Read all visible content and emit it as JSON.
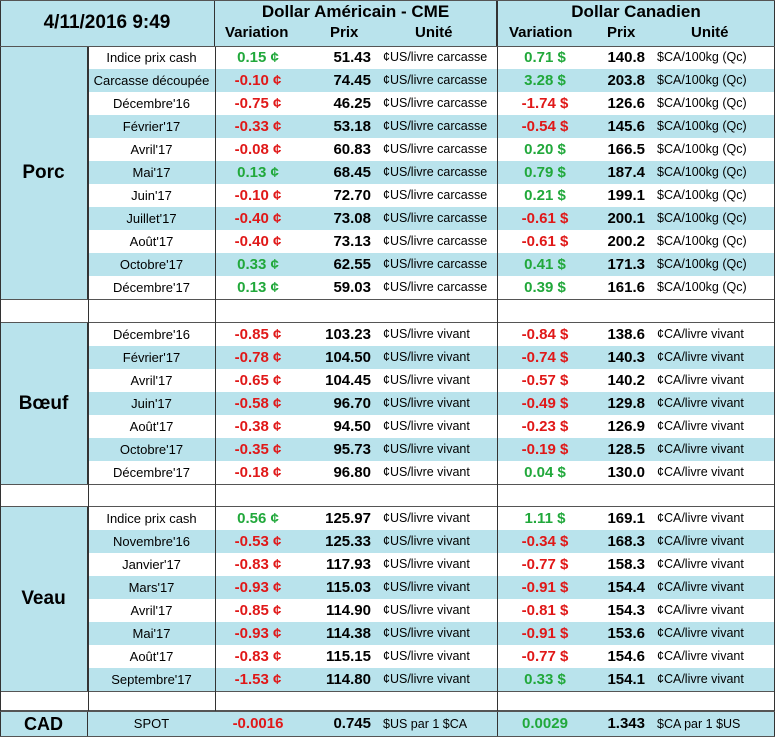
{
  "header": {
    "datetime": "4/11/2016 9:49",
    "usd_title": "Dollar Américain - CME",
    "cad_title": "Dollar Canadien",
    "col_variation": "Variation",
    "col_prix": "Prix",
    "col_unite": "Unité"
  },
  "groups": [
    {
      "label": "Porc",
      "rows": [
        {
          "month": "Indice prix cash",
          "usd_var": "0.15 ¢",
          "usd_price": "51.43",
          "usd_unit": "¢US/livre carcasse",
          "cad_var": "0.71 $",
          "cad_price": "140.8",
          "cad_unit": "$CA/100kg (Qc)",
          "usd_dir": "pos",
          "cad_dir": "pos"
        },
        {
          "month": "Carcasse découpée",
          "usd_var": "-0.10 ¢",
          "usd_price": "74.45",
          "usd_unit": "¢US/livre carcasse",
          "cad_var": "3.28 $",
          "cad_price": "203.8",
          "cad_unit": "$CA/100kg (Qc)",
          "usd_dir": "neg",
          "cad_dir": "pos"
        },
        {
          "month": "Décembre'16",
          "usd_var": "-0.75 ¢",
          "usd_price": "46.25",
          "usd_unit": "¢US/livre carcasse",
          "cad_var": "-1.74 $",
          "cad_price": "126.6",
          "cad_unit": "$CA/100kg (Qc)",
          "usd_dir": "neg",
          "cad_dir": "neg"
        },
        {
          "month": "Février'17",
          "usd_var": "-0.33 ¢",
          "usd_price": "53.18",
          "usd_unit": "¢US/livre carcasse",
          "cad_var": "-0.54 $",
          "cad_price": "145.6",
          "cad_unit": "$CA/100kg (Qc)",
          "usd_dir": "neg",
          "cad_dir": "neg"
        },
        {
          "month": "Avril'17",
          "usd_var": "-0.08 ¢",
          "usd_price": "60.83",
          "usd_unit": "¢US/livre carcasse",
          "cad_var": "0.20 $",
          "cad_price": "166.5",
          "cad_unit": "$CA/100kg (Qc)",
          "usd_dir": "neg",
          "cad_dir": "pos"
        },
        {
          "month": "Mai'17",
          "usd_var": "0.13 ¢",
          "usd_price": "68.45",
          "usd_unit": "¢US/livre carcasse",
          "cad_var": "0.79 $",
          "cad_price": "187.4",
          "cad_unit": "$CA/100kg (Qc)",
          "usd_dir": "pos",
          "cad_dir": "pos"
        },
        {
          "month": "Juin'17",
          "usd_var": "-0.10 ¢",
          "usd_price": "72.70",
          "usd_unit": "¢US/livre carcasse",
          "cad_var": "0.21 $",
          "cad_price": "199.1",
          "cad_unit": "$CA/100kg (Qc)",
          "usd_dir": "neg",
          "cad_dir": "pos"
        },
        {
          "month": "Juillet'17",
          "usd_var": "-0.40 ¢",
          "usd_price": "73.08",
          "usd_unit": "¢US/livre carcasse",
          "cad_var": "-0.61 $",
          "cad_price": "200.1",
          "cad_unit": "$CA/100kg (Qc)",
          "usd_dir": "neg",
          "cad_dir": "neg"
        },
        {
          "month": "Août'17",
          "usd_var": "-0.40 ¢",
          "usd_price": "73.13",
          "usd_unit": "¢US/livre carcasse",
          "cad_var": "-0.61 $",
          "cad_price": "200.2",
          "cad_unit": "$CA/100kg (Qc)",
          "usd_dir": "neg",
          "cad_dir": "neg"
        },
        {
          "month": "Octobre'17",
          "usd_var": "0.33 ¢",
          "usd_price": "62.55",
          "usd_unit": "¢US/livre carcasse",
          "cad_var": "0.41 $",
          "cad_price": "171.3",
          "cad_unit": "$CA/100kg (Qc)",
          "usd_dir": "pos",
          "cad_dir": "pos"
        },
        {
          "month": "Décembre'17",
          "usd_var": "0.13 ¢",
          "usd_price": "59.03",
          "usd_unit": "¢US/livre carcasse",
          "cad_var": "0.39 $",
          "cad_price": "161.6",
          "cad_unit": "$CA/100kg (Qc)",
          "usd_dir": "pos",
          "cad_dir": "pos"
        }
      ]
    },
    {
      "label": "Bœuf",
      "rows": [
        {
          "month": "Décembre'16",
          "usd_var": "-0.85 ¢",
          "usd_price": "103.23",
          "usd_unit": "¢US/livre vivant",
          "cad_var": "-0.84 $",
          "cad_price": "138.6",
          "cad_unit": "¢CA/livre vivant",
          "usd_dir": "neg",
          "cad_dir": "neg"
        },
        {
          "month": "Février'17",
          "usd_var": "-0.78 ¢",
          "usd_price": "104.50",
          "usd_unit": "¢US/livre vivant",
          "cad_var": "-0.74 $",
          "cad_price": "140.3",
          "cad_unit": "¢CA/livre vivant",
          "usd_dir": "neg",
          "cad_dir": "neg"
        },
        {
          "month": "Avril'17",
          "usd_var": "-0.65 ¢",
          "usd_price": "104.45",
          "usd_unit": "¢US/livre vivant",
          "cad_var": "-0.57 $",
          "cad_price": "140.2",
          "cad_unit": "¢CA/livre vivant",
          "usd_dir": "neg",
          "cad_dir": "neg"
        },
        {
          "month": "Juin'17",
          "usd_var": "-0.58 ¢",
          "usd_price": "96.70",
          "usd_unit": "¢US/livre vivant",
          "cad_var": "-0.49 $",
          "cad_price": "129.8",
          "cad_unit": "¢CA/livre vivant",
          "usd_dir": "neg",
          "cad_dir": "neg"
        },
        {
          "month": "Août'17",
          "usd_var": "-0.38 ¢",
          "usd_price": "94.50",
          "usd_unit": "¢US/livre vivant",
          "cad_var": "-0.23 $",
          "cad_price": "126.9",
          "cad_unit": "¢CA/livre vivant",
          "usd_dir": "neg",
          "cad_dir": "neg"
        },
        {
          "month": "Octobre'17",
          "usd_var": "-0.35 ¢",
          "usd_price": "95.73",
          "usd_unit": "¢US/livre vivant",
          "cad_var": "-0.19 $",
          "cad_price": "128.5",
          "cad_unit": "¢CA/livre vivant",
          "usd_dir": "neg",
          "cad_dir": "neg"
        },
        {
          "month": "Décembre'17",
          "usd_var": "-0.18 ¢",
          "usd_price": "96.80",
          "usd_unit": "¢US/livre vivant",
          "cad_var": "0.04 $",
          "cad_price": "130.0",
          "cad_unit": "¢CA/livre vivant",
          "usd_dir": "neg",
          "cad_dir": "pos"
        }
      ]
    },
    {
      "label": "Veau",
      "rows": [
        {
          "month": "Indice prix cash",
          "usd_var": "0.56 ¢",
          "usd_price": "125.97",
          "usd_unit": "¢US/livre vivant",
          "cad_var": "1.11 $",
          "cad_price": "169.1",
          "cad_unit": "¢CA/livre vivant",
          "usd_dir": "pos",
          "cad_dir": "pos"
        },
        {
          "month": "Novembre'16",
          "usd_var": "-0.53 ¢",
          "usd_price": "125.33",
          "usd_unit": "¢US/livre vivant",
          "cad_var": "-0.34 $",
          "cad_price": "168.3",
          "cad_unit": "¢CA/livre vivant",
          "usd_dir": "neg",
          "cad_dir": "neg"
        },
        {
          "month": "Janvier'17",
          "usd_var": "-0.83 ¢",
          "usd_price": "117.93",
          "usd_unit": "¢US/livre vivant",
          "cad_var": "-0.77 $",
          "cad_price": "158.3",
          "cad_unit": "¢CA/livre vivant",
          "usd_dir": "neg",
          "cad_dir": "neg"
        },
        {
          "month": "Mars'17",
          "usd_var": "-0.93 ¢",
          "usd_price": "115.03",
          "usd_unit": "¢US/livre vivant",
          "cad_var": "-0.91 $",
          "cad_price": "154.4",
          "cad_unit": "¢CA/livre vivant",
          "usd_dir": "neg",
          "cad_dir": "neg"
        },
        {
          "month": "Avril'17",
          "usd_var": "-0.85 ¢",
          "usd_price": "114.90",
          "usd_unit": "¢US/livre vivant",
          "cad_var": "-0.81 $",
          "cad_price": "154.3",
          "cad_unit": "¢CA/livre vivant",
          "usd_dir": "neg",
          "cad_dir": "neg"
        },
        {
          "month": "Mai'17",
          "usd_var": "-0.93 ¢",
          "usd_price": "114.38",
          "usd_unit": "¢US/livre vivant",
          "cad_var": "-0.91 $",
          "cad_price": "153.6",
          "cad_unit": "¢CA/livre vivant",
          "usd_dir": "neg",
          "cad_dir": "neg"
        },
        {
          "month": "Août'17",
          "usd_var": "-0.83 ¢",
          "usd_price": "115.15",
          "usd_unit": "¢US/livre vivant",
          "cad_var": "-0.77 $",
          "cad_price": "154.6",
          "cad_unit": "¢CA/livre vivant",
          "usd_dir": "neg",
          "cad_dir": "neg"
        },
        {
          "month": "Septembre'17",
          "usd_var": "-1.53 ¢",
          "usd_price": "114.80",
          "usd_unit": "¢US/livre vivant",
          "cad_var": "0.33 $",
          "cad_price": "154.1",
          "cad_unit": "¢CA/livre vivant",
          "usd_dir": "neg",
          "cad_dir": "pos"
        }
      ]
    }
  ],
  "cad": {
    "label": "CAD",
    "month": "SPOT",
    "usd_var": "-0.0016",
    "usd_price": "0.745",
    "usd_unit": "$US par 1 $CA",
    "cad_var": "0.0029",
    "cad_price": "1.343",
    "cad_unit": "$CA par 1 $US",
    "usd_dir": "neg",
    "cad_dir": "pos"
  },
  "colors": {
    "header_bg": "#b9e3ec",
    "row_blue": "#b9e3ec",
    "positive": "#21a83b",
    "negative": "#e01818"
  }
}
